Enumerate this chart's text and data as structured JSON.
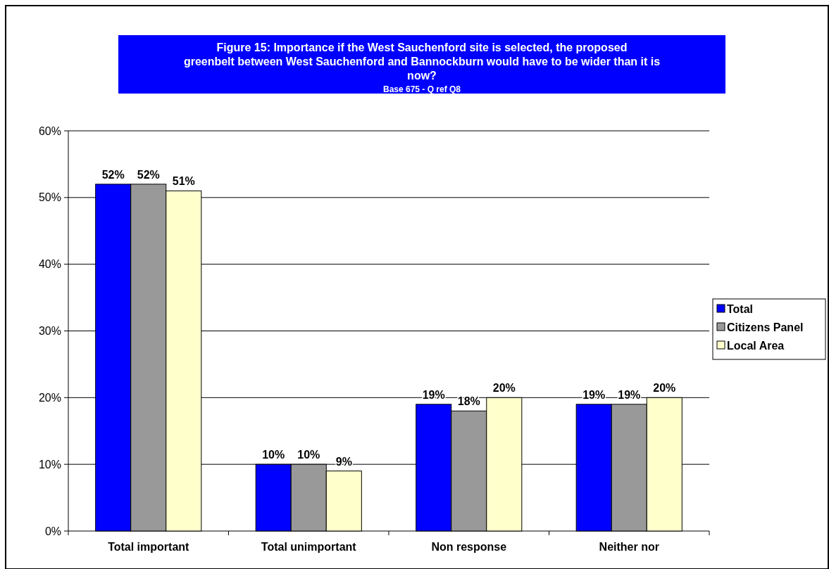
{
  "chart_data": {
    "type": "bar",
    "title": "Figure 15: Importance if the West Sauchenford site is selected, the proposed greenbelt between West Sauchenford and Bannockburn would have to be wider than it is now?",
    "subtitle": "Base 675 - Q ref Q8",
    "categories": [
      "Total important",
      "Total unimportant",
      "Non response",
      "Neither nor"
    ],
    "series": [
      {
        "name": "Total",
        "color": "#0000ff",
        "values": [
          52,
          10,
          19,
          19
        ],
        "value_labels": [
          "52%",
          "10%",
          "19%",
          "19%"
        ]
      },
      {
        "name": "Citizens Panel",
        "color": "#999999",
        "values": [
          52,
          10,
          18,
          19
        ],
        "value_labels": [
          "52%",
          "10%",
          "18%",
          "19%"
        ]
      },
      {
        "name": "Local Area",
        "color": "#ffffcc",
        "values": [
          51,
          9,
          20,
          20
        ],
        "value_labels": [
          "51%",
          "9%",
          "20%",
          "20%"
        ]
      }
    ],
    "ylim": [
      0,
      60
    ],
    "yticks": [
      {
        "value": 0,
        "label": "0%"
      },
      {
        "value": 10,
        "label": "10%"
      },
      {
        "value": 20,
        "label": "20%"
      },
      {
        "value": 30,
        "label": "30%"
      },
      {
        "value": 40,
        "label": "40%"
      },
      {
        "value": 50,
        "label": "50%"
      },
      {
        "value": 60,
        "label": "60%"
      }
    ],
    "grid": "y",
    "legend": "right"
  }
}
